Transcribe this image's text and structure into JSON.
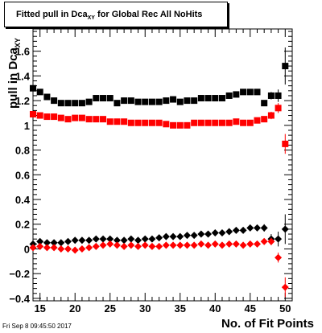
{
  "title": {
    "main": "Fitted pull in Dca",
    "sub": "XY",
    "tail": " for Global Rec All NoHits"
  },
  "ylabel": {
    "main": "pull in Dca",
    "sub": "XY"
  },
  "xlabel": "No. of Fit Points",
  "timestamp": "Fri Sep  8 09:45:50 2017",
  "colors": {
    "series_black": "#000000",
    "series_red": "#ff0000"
  },
  "chart_data": {
    "type": "scatter",
    "xlim": [
      14,
      51
    ],
    "ylim": [
      -0.42,
      1.78
    ],
    "x_ticks": [
      15,
      20,
      25,
      30,
      35,
      40,
      45,
      50
    ],
    "y_ticks": [
      -0.4,
      -0.2,
      0,
      0.2,
      0.4,
      0.6,
      0.8,
      1,
      1.2,
      1.4,
      1.6
    ],
    "y_tick_labels": [
      "−0.4",
      "−0.2",
      "0",
      "0.2",
      "0.4",
      "0.6",
      "0.8",
      "1",
      "1.2",
      "1.4",
      "1.6"
    ],
    "grid": false,
    "legend": "none",
    "series": [
      {
        "marker": "square",
        "color": "#000000",
        "x": [
          14,
          15,
          16,
          17,
          18,
          19,
          20,
          21,
          22,
          23,
          24,
          25,
          26,
          27,
          28,
          29,
          30,
          31,
          32,
          33,
          34,
          35,
          36,
          37,
          38,
          39,
          40,
          41,
          42,
          43,
          44,
          45,
          46,
          47,
          48,
          49,
          50
        ],
        "y": [
          1.3,
          1.27,
          1.23,
          1.2,
          1.18,
          1.18,
          1.18,
          1.18,
          1.19,
          1.22,
          1.22,
          1.22,
          1.18,
          1.2,
          1.2,
          1.19,
          1.19,
          1.19,
          1.19,
          1.2,
          1.21,
          1.19,
          1.2,
          1.2,
          1.22,
          1.22,
          1.22,
          1.22,
          1.24,
          1.25,
          1.27,
          1.27,
          1.27,
          1.18,
          1.24,
          1.24,
          1.48
        ],
        "err": [
          0.01,
          0.01,
          0.01,
          0.01,
          0.01,
          0.01,
          0.01,
          0.01,
          0.01,
          0.01,
          0.01,
          0.01,
          0.01,
          0.01,
          0.01,
          0.01,
          0.01,
          0.01,
          0.01,
          0.01,
          0.01,
          0.01,
          0.01,
          0.01,
          0.01,
          0.01,
          0.01,
          0.01,
          0.01,
          0.01,
          0.01,
          0.02,
          0.02,
          0.02,
          0.03,
          0.05,
          0.15
        ]
      },
      {
        "marker": "square",
        "color": "#ff0000",
        "x": [
          14,
          15,
          16,
          17,
          18,
          19,
          20,
          21,
          22,
          23,
          24,
          25,
          26,
          27,
          28,
          29,
          30,
          31,
          32,
          33,
          34,
          35,
          36,
          37,
          38,
          39,
          40,
          41,
          42,
          43,
          44,
          45,
          46,
          47,
          48,
          49,
          50
        ],
        "y": [
          1.09,
          1.08,
          1.07,
          1.07,
          1.06,
          1.05,
          1.06,
          1.06,
          1.05,
          1.05,
          1.05,
          1.03,
          1.03,
          1.03,
          1.02,
          1.02,
          1.02,
          1.02,
          1.02,
          1.01,
          1.0,
          1.0,
          1.0,
          1.02,
          1.02,
          1.02,
          1.02,
          1.02,
          1.02,
          1.03,
          1.02,
          1.02,
          1.04,
          1.05,
          1.08,
          1.14,
          0.85
        ],
        "err": [
          0.01,
          0.01,
          0.01,
          0.01,
          0.01,
          0.01,
          0.01,
          0.01,
          0.01,
          0.01,
          0.01,
          0.01,
          0.01,
          0.01,
          0.01,
          0.01,
          0.01,
          0.01,
          0.01,
          0.01,
          0.01,
          0.01,
          0.01,
          0.01,
          0.01,
          0.01,
          0.01,
          0.01,
          0.01,
          0.01,
          0.01,
          0.01,
          0.02,
          0.02,
          0.03,
          0.04,
          0.08
        ]
      },
      {
        "marker": "diamond",
        "color": "#000000",
        "x": [
          14,
          15,
          16,
          17,
          18,
          19,
          20,
          21,
          22,
          23,
          24,
          25,
          26,
          27,
          28,
          29,
          30,
          31,
          32,
          33,
          34,
          35,
          36,
          37,
          38,
          39,
          40,
          41,
          42,
          43,
          44,
          45,
          46,
          47,
          48,
          49,
          50
        ],
        "y": [
          0.04,
          0.06,
          0.05,
          0.05,
          0.05,
          0.06,
          0.07,
          0.07,
          0.07,
          0.08,
          0.08,
          0.08,
          0.07,
          0.07,
          0.08,
          0.07,
          0.08,
          0.08,
          0.09,
          0.1,
          0.1,
          0.1,
          0.11,
          0.11,
          0.12,
          0.12,
          0.13,
          0.13,
          0.14,
          0.15,
          0.15,
          0.17,
          0.17,
          0.17,
          0.08,
          0.08,
          0.16
        ],
        "err": [
          0.01,
          0.01,
          0.01,
          0.01,
          0.01,
          0.01,
          0.01,
          0.01,
          0.01,
          0.01,
          0.01,
          0.01,
          0.01,
          0.01,
          0.01,
          0.01,
          0.01,
          0.01,
          0.01,
          0.01,
          0.01,
          0.01,
          0.01,
          0.01,
          0.01,
          0.01,
          0.01,
          0.01,
          0.01,
          0.01,
          0.02,
          0.02,
          0.02,
          0.03,
          0.04,
          0.06,
          0.12
        ]
      },
      {
        "marker": "diamond",
        "color": "#ff0000",
        "x": [
          14,
          15,
          16,
          17,
          18,
          19,
          20,
          21,
          22,
          23,
          24,
          25,
          26,
          27,
          28,
          29,
          30,
          31,
          32,
          33,
          34,
          35,
          36,
          37,
          38,
          39,
          40,
          41,
          42,
          43,
          44,
          45,
          46,
          47,
          48,
          49,
          50
        ],
        "y": [
          0.01,
          0.02,
          0.01,
          0.01,
          0.0,
          0.0,
          -0.01,
          0.0,
          0.01,
          0.02,
          0.03,
          0.04,
          0.03,
          0.02,
          0.03,
          0.02,
          0.03,
          0.02,
          0.02,
          0.03,
          0.03,
          0.03,
          0.03,
          0.03,
          0.04,
          0.03,
          0.04,
          0.03,
          0.04,
          0.04,
          0.03,
          0.04,
          0.04,
          0.06,
          0.06,
          -0.07,
          -0.31
        ],
        "err": [
          0.01,
          0.01,
          0.01,
          0.01,
          0.01,
          0.01,
          0.01,
          0.01,
          0.01,
          0.01,
          0.01,
          0.01,
          0.01,
          0.01,
          0.01,
          0.01,
          0.01,
          0.01,
          0.01,
          0.01,
          0.01,
          0.01,
          0.01,
          0.01,
          0.01,
          0.01,
          0.01,
          0.01,
          0.01,
          0.01,
          0.01,
          0.01,
          0.02,
          0.02,
          0.03,
          0.04,
          0.08
        ]
      }
    ]
  }
}
